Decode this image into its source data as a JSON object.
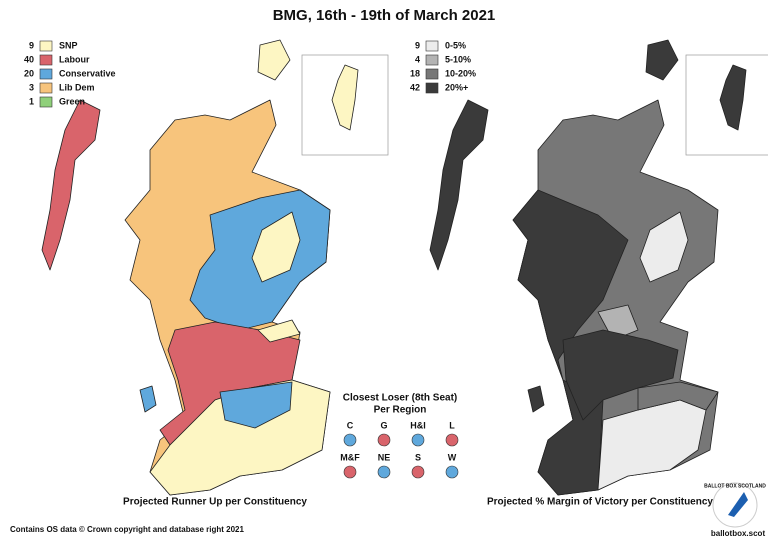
{
  "title": "BMG, 16th - 19th of March 2021",
  "left_map": {
    "legend": [
      {
        "count": 9,
        "label": "SNP",
        "color": "#fdf6c3"
      },
      {
        "count": 40,
        "label": "Labour",
        "color": "#d9646b"
      },
      {
        "count": 20,
        "label": "Conservative",
        "color": "#5fa8dc"
      },
      {
        "count": 3,
        "label": "Lib Dem",
        "color": "#f7c47c"
      },
      {
        "count": 1,
        "label": "Green",
        "color": "#8fd07a"
      }
    ],
    "caption": "Projected Runner Up per Constituency"
  },
  "right_map": {
    "legend": [
      {
        "count": 9,
        "label": "0-5%",
        "color": "#ececec"
      },
      {
        "count": 4,
        "label": "5-10%",
        "color": "#b3b3b3"
      },
      {
        "count": 18,
        "label": "10-20%",
        "color": "#777777"
      },
      {
        "count": 42,
        "label": "20%+",
        "color": "#3a3a3a"
      }
    ],
    "caption": "Projected % Margin of Victory per Constituency"
  },
  "closest_loser": {
    "title": "Closest Loser (8th Seat)",
    "subtitle": "Per Region",
    "regions": [
      {
        "label": "C",
        "color": "#5fa8dc"
      },
      {
        "label": "G",
        "color": "#d9646b"
      },
      {
        "label": "H&I",
        "color": "#5fa8dc"
      },
      {
        "label": "L",
        "color": "#d9646b"
      },
      {
        "label": "M&F",
        "color": "#d9646b"
      },
      {
        "label": "NE",
        "color": "#5fa8dc"
      },
      {
        "label": "S",
        "color": "#d9646b"
      },
      {
        "label": "W",
        "color": "#5fa8dc"
      }
    ]
  },
  "footer": "Contains OS data © Crown copyright and database right 2021",
  "logo": {
    "ring": "BALLOT BOX SCOTLAND",
    "site": "ballotbox.scot"
  }
}
